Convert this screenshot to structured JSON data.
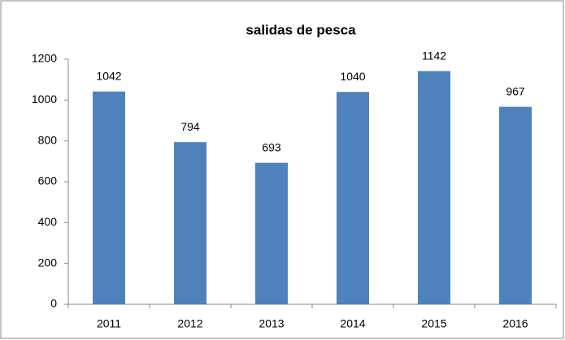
{
  "chart_data": {
    "type": "bar",
    "title": "salidas de pesca",
    "categories": [
      "2011",
      "2012",
      "2013",
      "2014",
      "2015",
      "2016"
    ],
    "values": [
      1042,
      794,
      693,
      1040,
      1142,
      967
    ],
    "color": "#4f81bd",
    "ylim": [
      0,
      1200
    ],
    "yticks": [
      0,
      200,
      400,
      600,
      800,
      1000,
      1200
    ],
    "grid": false
  }
}
